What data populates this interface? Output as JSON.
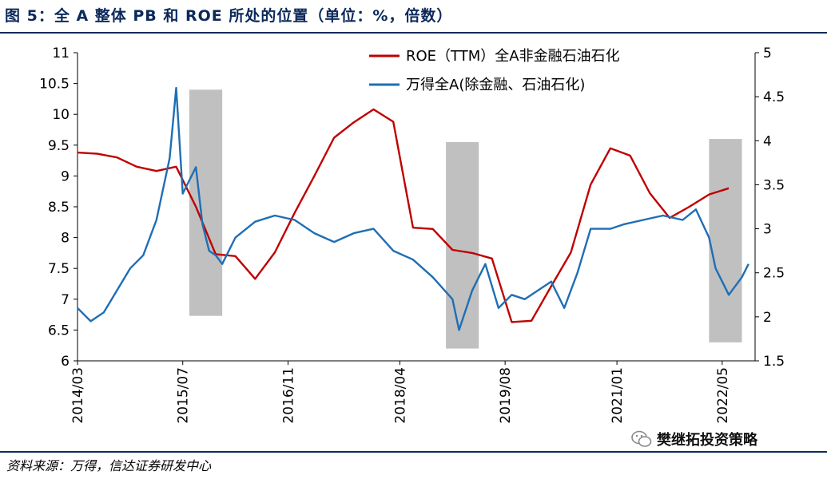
{
  "title": "图 5：全 A 整体 PB 和 ROE 所处的位置（单位：%，倍数）",
  "source": "资料来源：万得，信达证券研发中心",
  "watermark": "樊继拓投资策略",
  "colors": {
    "roe": "#c00000",
    "pb": "#1f6eb5",
    "shade": "#c0c0c0",
    "brand": "#0b2a5a"
  },
  "chart_data": {
    "type": "line",
    "x_ticks": [
      "2014/03",
      "2015/07",
      "2016/11",
      "2018/04",
      "2019/08",
      "2021/01",
      "2022/05"
    ],
    "x_range": [
      "2014-03",
      "2022-10"
    ],
    "y_left": {
      "range": [
        6,
        11
      ],
      "ticks": [
        "6",
        "6.5",
        "7",
        "7.5",
        "8",
        "8.5",
        "9",
        "9.5",
        "10",
        "10.5",
        "11"
      ]
    },
    "y_right": {
      "range": [
        1.5,
        5
      ],
      "ticks": [
        "1.5",
        "2",
        "2.5",
        "3",
        "3.5",
        "4",
        "4.5",
        "5"
      ]
    },
    "legend": {
      "position": "top-right"
    },
    "shaded_periods": [
      {
        "start": "2015-08",
        "end": "2016-01",
        "y_top": 10.4,
        "y_bottom": 6.73
      },
      {
        "start": "2018-11",
        "end": "2019-04",
        "y_top": 9.55,
        "y_bottom": 6.2
      },
      {
        "start": "2022-03",
        "end": "2022-08",
        "y_top": 9.6,
        "y_bottom": 6.3
      }
    ],
    "series": [
      {
        "name": "ROE（TTM）全A非金融石油石化",
        "axis": "left",
        "x": [
          "2014-03",
          "2014-06",
          "2014-09",
          "2014-12",
          "2015-03",
          "2015-06",
          "2015-09",
          "2015-12",
          "2016-03",
          "2016-06",
          "2016-09",
          "2016-12",
          "2017-03",
          "2017-06",
          "2017-09",
          "2017-12",
          "2018-03",
          "2018-06",
          "2018-09",
          "2018-12",
          "2019-03",
          "2019-06",
          "2019-09",
          "2019-12",
          "2020-03",
          "2020-06",
          "2020-09",
          "2020-12",
          "2021-03",
          "2021-06",
          "2021-09",
          "2021-12",
          "2022-03",
          "2022-06"
        ],
        "values": [
          9.38,
          9.36,
          9.3,
          9.15,
          9.08,
          9.15,
          8.5,
          7.73,
          7.7,
          7.33,
          7.76,
          8.4,
          9.0,
          9.62,
          9.87,
          10.08,
          9.88,
          8.16,
          8.14,
          7.8,
          7.75,
          7.66,
          6.63,
          6.65,
          7.21,
          7.76,
          8.86,
          9.45,
          9.33,
          8.72,
          8.32,
          8.5,
          8.7,
          8.8
        ]
      },
      {
        "name": "万得全A(除金融、石油石化)",
        "axis": "right",
        "x": [
          "2014-03",
          "2014-05",
          "2014-07",
          "2014-09",
          "2014-11",
          "2015-01",
          "2015-03",
          "2015-05",
          "2015-06",
          "2015-07",
          "2015-08",
          "2015-09",
          "2015-10",
          "2015-11",
          "2015-12",
          "2016-01",
          "2016-03",
          "2016-06",
          "2016-09",
          "2016-12",
          "2017-03",
          "2017-06",
          "2017-09",
          "2017-12",
          "2018-03",
          "2018-06",
          "2018-09",
          "2018-12",
          "2019-01",
          "2019-03",
          "2019-05",
          "2019-07",
          "2019-09",
          "2019-11",
          "2020-01",
          "2020-03",
          "2020-05",
          "2020-07",
          "2020-09",
          "2020-12",
          "2021-02",
          "2021-05",
          "2021-08",
          "2021-11",
          "2022-01",
          "2022-03",
          "2022-04",
          "2022-06",
          "2022-08",
          "2022-09"
        ],
        "values": [
          2.1,
          1.95,
          2.05,
          2.3,
          2.55,
          2.7,
          3.1,
          3.8,
          4.6,
          3.4,
          3.55,
          3.7,
          3.05,
          2.75,
          2.7,
          2.6,
          2.9,
          3.08,
          3.15,
          3.1,
          2.95,
          2.85,
          2.95,
          3.0,
          2.75,
          2.65,
          2.45,
          2.2,
          1.85,
          2.3,
          2.6,
          2.1,
          2.25,
          2.2,
          2.3,
          2.4,
          2.1,
          2.5,
          3.0,
          3.0,
          3.05,
          3.1,
          3.15,
          3.1,
          3.22,
          2.9,
          2.55,
          2.25,
          2.45,
          2.6
        ]
      }
    ]
  }
}
